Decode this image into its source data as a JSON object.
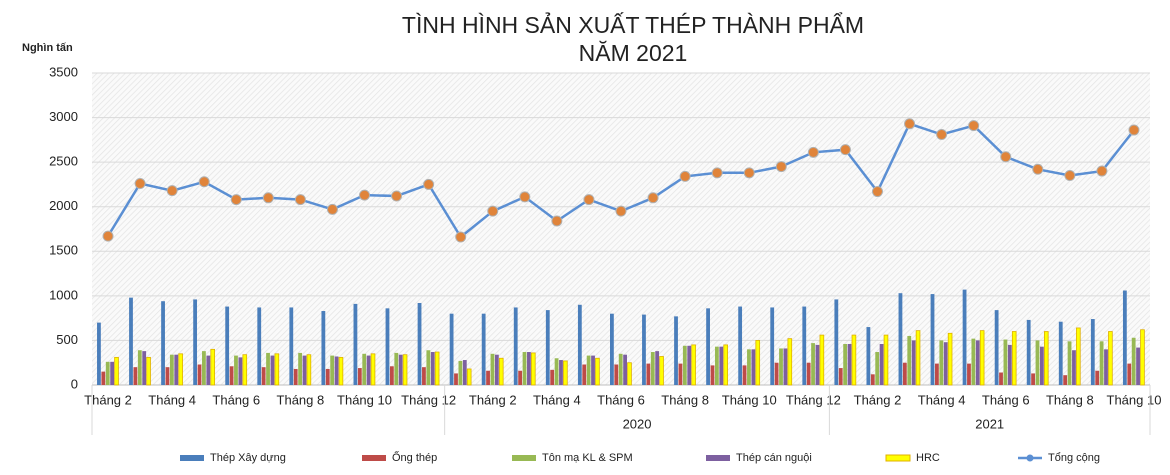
{
  "chart_data": {
    "type": "bar_line",
    "title": "TÌNH HÌNH SẢN XUẤT THÉP THÀNH PHẨM",
    "subtitle": "NĂM 2021",
    "y_label": "Nghìn tấn",
    "categories": [
      "Tháng 2",
      null,
      "Tháng 4",
      null,
      "Tháng 6",
      null,
      "Tháng 8",
      null,
      "Tháng 10",
      null,
      "Tháng 12",
      null,
      "Tháng 2",
      null,
      "Tháng 4",
      null,
      "Tháng 6",
      null,
      "Tháng 8",
      null,
      "Tháng 10",
      null,
      "Tháng 12",
      null,
      "Tháng 2",
      null,
      "Tháng 4",
      null,
      "Tháng 6",
      null,
      "Tháng 8",
      null,
      "Tháng 10"
    ],
    "groups": [
      {
        "label": null,
        "size": 11
      },
      {
        "label": "2020",
        "size": 12
      },
      {
        "label": "2021",
        "size": 10
      }
    ],
    "ylim": [
      0,
      3500
    ],
    "yticks": [
      0,
      500,
      1000,
      1500,
      2000,
      2500,
      3000,
      3500
    ],
    "grid": true,
    "legend": "bottom",
    "series": [
      {
        "name": "Thép Xây dựng",
        "type": "bar",
        "color": "#4a7ebb",
        "values": [
          700,
          980,
          940,
          960,
          880,
          870,
          870,
          830,
          910,
          860,
          920,
          800,
          800,
          870,
          840,
          900,
          800,
          790,
          770,
          860,
          880,
          870,
          880,
          960,
          650,
          1030,
          1020,
          1070,
          840,
          730,
          710,
          740,
          1060
        ]
      },
      {
        "name": "Ống thép",
        "type": "bar",
        "color": "#be4b48",
        "values": [
          150,
          200,
          200,
          230,
          210,
          200,
          180,
          180,
          190,
          210,
          200,
          130,
          160,
          160,
          170,
          230,
          230,
          240,
          240,
          220,
          220,
          250,
          250,
          190,
          120,
          250,
          240,
          240,
          140,
          130,
          110,
          160,
          240
        ]
      },
      {
        "name": "Tôn mạ KL & SPM",
        "type": "bar",
        "color": "#98b954",
        "values": [
          260,
          390,
          340,
          380,
          330,
          360,
          360,
          330,
          350,
          360,
          390,
          270,
          350,
          370,
          300,
          330,
          350,
          370,
          440,
          430,
          400,
          410,
          470,
          460,
          370,
          550,
          500,
          520,
          510,
          500,
          490,
          490,
          530
        ]
      },
      {
        "name": "Thép cán nguội",
        "type": "bar",
        "color": "#7d60a0",
        "values": [
          260,
          380,
          340,
          330,
          310,
          330,
          330,
          320,
          330,
          340,
          370,
          280,
          340,
          370,
          280,
          330,
          340,
          380,
          440,
          430,
          400,
          410,
          450,
          460,
          460,
          500,
          480,
          500,
          450,
          430,
          390,
          400,
          420
        ]
      },
      {
        "name": "HRC",
        "type": "bar",
        "color": "#ffff00",
        "values": [
          310,
          310,
          350,
          400,
          340,
          350,
          340,
          310,
          350,
          340,
          370,
          180,
          300,
          360,
          270,
          300,
          250,
          320,
          450,
          450,
          500,
          520,
          560,
          560,
          560,
          610,
          580,
          610,
          600,
          600,
          640,
          600,
          620
        ]
      },
      {
        "name": "Tổng cộng",
        "type": "line",
        "color": "#5b8fd3",
        "marker_color": "#e0843a",
        "values": [
          1670,
          2260,
          2180,
          2280,
          2080,
          2100,
          2080,
          1970,
          2130,
          2120,
          2250,
          1660,
          1950,
          2110,
          1840,
          2080,
          1950,
          2100,
          2340,
          2380,
          2380,
          2450,
          2610,
          2640,
          2170,
          2930,
          2810,
          2910,
          2560,
          2420,
          2350,
          2400,
          2860
        ]
      }
    ]
  }
}
